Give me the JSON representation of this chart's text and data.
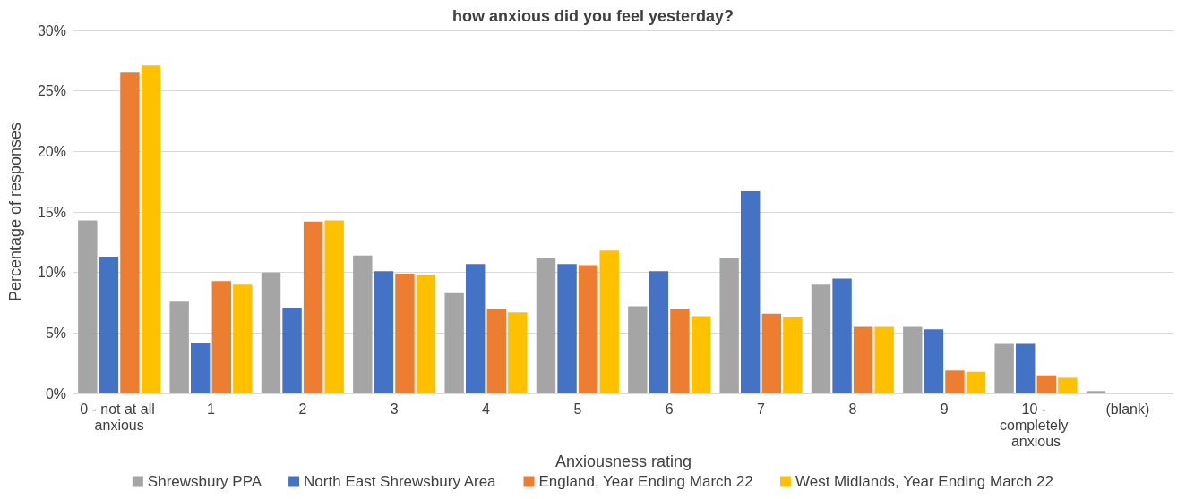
{
  "chart_data": {
    "type": "bar",
    "title": "how anxious did you feel yesterday?",
    "xlabel": "Anxiousness rating",
    "ylabel": "Percentage of responses",
    "categories": [
      "0 - not at all anxious",
      "1",
      "2",
      "3",
      "4",
      "5",
      "6",
      "7",
      "8",
      "9",
      "10 - completely anxious",
      "(blank)"
    ],
    "series": [
      {
        "name": "Shrewsbury PPA",
        "color": "#a5a5a5",
        "values": [
          14.3,
          7.6,
          10.0,
          11.4,
          8.3,
          11.2,
          7.2,
          11.2,
          9.0,
          5.5,
          4.1,
          0.2
        ]
      },
      {
        "name": "North East Shrewsbury Area",
        "color": "#4472c4",
        "values": [
          11.3,
          4.2,
          7.1,
          10.1,
          10.7,
          10.7,
          10.1,
          16.7,
          9.5,
          5.3,
          4.1,
          null
        ]
      },
      {
        "name": "England, Year Ending March 22",
        "color": "#ed7d31",
        "values": [
          26.5,
          9.3,
          14.2,
          9.9,
          7.0,
          10.6,
          7.0,
          6.6,
          5.5,
          1.9,
          1.5,
          null
        ]
      },
      {
        "name": "West Midlands, Year Ending March 22",
        "color": "#ffc000",
        "values": [
          27.1,
          9.0,
          14.3,
          9.8,
          6.7,
          11.8,
          6.4,
          6.3,
          5.5,
          1.8,
          1.3,
          null
        ]
      }
    ],
    "ylim": [
      0,
      30
    ],
    "yticks": [
      {
        "value": 0,
        "label": "0%"
      },
      {
        "value": 5,
        "label": "5%"
      },
      {
        "value": 10,
        "label": "10%"
      },
      {
        "value": 15,
        "label": "15%"
      },
      {
        "value": 20,
        "label": "20%"
      },
      {
        "value": 25,
        "label": "25%"
      },
      {
        "value": 30,
        "label": "30%"
      }
    ],
    "grid": "y",
    "legend": "bottom"
  }
}
